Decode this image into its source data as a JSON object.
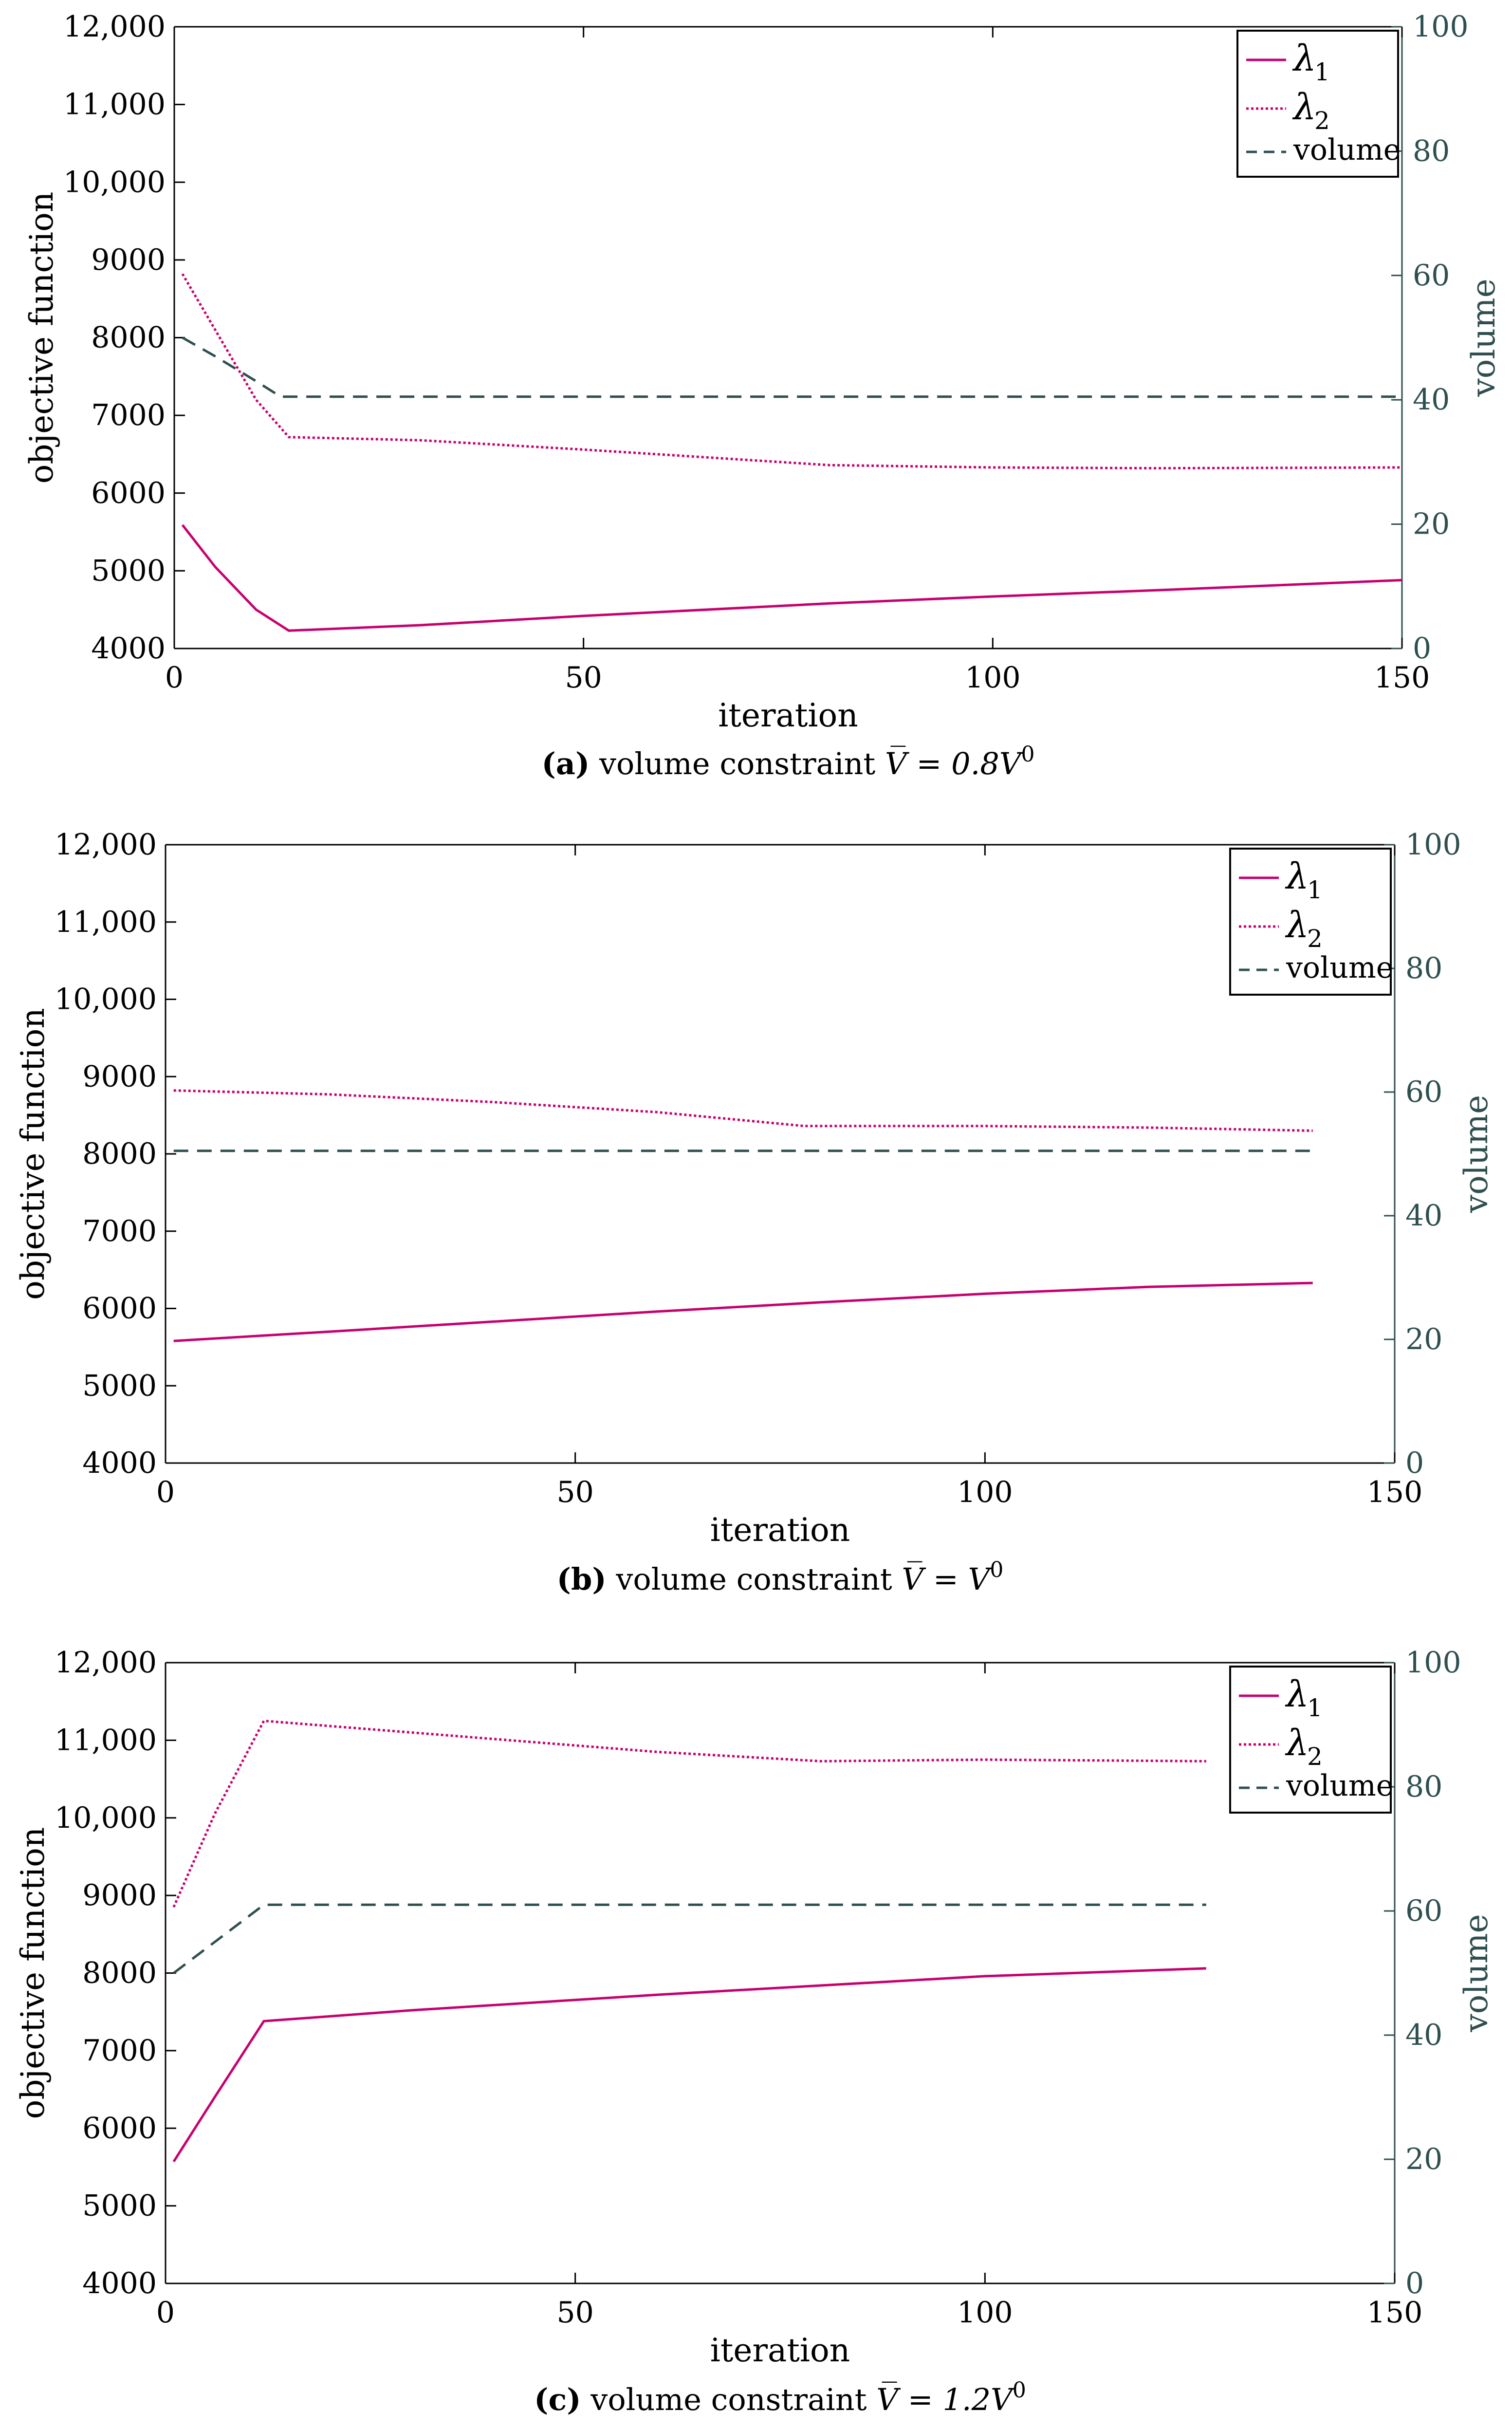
{
  "colors": {
    "lambda1": "#c8006e",
    "lambda2": "#c8006e",
    "volume": "#2f4f4f",
    "axis_left": "#000000",
    "axis_right": "#2f4f4f"
  },
  "chart_data": [
    {
      "type": "line",
      "xlabel": "iteration",
      "ylabel": "objective function",
      "y2label": "volume",
      "xlim": [
        0,
        150
      ],
      "ylim": [
        4000,
        12000
      ],
      "y2lim": [
        0,
        100
      ],
      "xticks": [
        0,
        50,
        100,
        150
      ],
      "yticks": [
        4000,
        5000,
        6000,
        7000,
        8000,
        9000,
        10000,
        11000,
        12000
      ],
      "yticklabels": [
        "4000",
        "5000",
        "6000",
        "7000",
        "8000",
        "9000",
        "10,000",
        "11,000",
        "12,000"
      ],
      "y2ticks": [
        0,
        20,
        40,
        60,
        80,
        100
      ],
      "legend": {
        "position": "top-right",
        "lambda1": "λ",
        "lambda1_sub": "1",
        "lambda2": "λ",
        "lambda2_sub": "2",
        "volume": "volume"
      },
      "caption": {
        "label": "(a)",
        "text": "volume constraint",
        "math": "V̅ = 0.8V",
        "sup": "0"
      },
      "series": [
        {
          "name": "λ1",
          "axis": "left",
          "style": "solid",
          "x": [
            1,
            5,
            10,
            14,
            30,
            50,
            80,
            100,
            120,
            150
          ],
          "y": [
            5590,
            5050,
            4500,
            4230,
            4300,
            4420,
            4580,
            4670,
            4750,
            4880
          ]
        },
        {
          "name": "λ2",
          "axis": "left",
          "style": "dotted",
          "x": [
            1,
            5,
            10,
            14,
            30,
            50,
            80,
            100,
            120,
            150
          ],
          "y": [
            8820,
            8100,
            7200,
            6720,
            6680,
            6560,
            6360,
            6330,
            6320,
            6330
          ]
        },
        {
          "name": "volume",
          "axis": "right",
          "style": "dashed",
          "x": [
            1,
            5,
            10,
            13,
            30,
            60,
            100,
            150
          ],
          "y": [
            50,
            47,
            43,
            40.5,
            40.5,
            40.5,
            40.5,
            40.5
          ]
        }
      ]
    },
    {
      "type": "line",
      "xlabel": "iteration",
      "ylabel": "objective function",
      "y2label": "volume",
      "xlim": [
        0,
        150
      ],
      "ylim": [
        4000,
        12000
      ],
      "y2lim": [
        0,
        100
      ],
      "xticks": [
        0,
        50,
        100,
        150
      ],
      "yticks": [
        4000,
        5000,
        6000,
        7000,
        8000,
        9000,
        10000,
        11000,
        12000
      ],
      "yticklabels": [
        "4000",
        "5000",
        "6000",
        "7000",
        "8000",
        "9000",
        "10,000",
        "11,000",
        "12,000"
      ],
      "y2ticks": [
        0,
        20,
        40,
        60,
        80,
        100
      ],
      "legend": {
        "position": "top-right",
        "lambda1": "λ",
        "lambda1_sub": "1",
        "lambda2": "λ",
        "lambda2_sub": "2",
        "volume": "volume"
      },
      "caption": {
        "label": "(b)",
        "text": "volume constraint",
        "math": "V̅ = V",
        "sup": "0"
      },
      "series": [
        {
          "name": "λ1",
          "axis": "left",
          "style": "solid",
          "x": [
            1,
            20,
            40,
            60,
            80,
            100,
            120,
            140
          ],
          "y": [
            5580,
            5700,
            5830,
            5960,
            6080,
            6190,
            6280,
            6330
          ]
        },
        {
          "name": "λ2",
          "axis": "left",
          "style": "dotted",
          "x": [
            1,
            20,
            40,
            60,
            78,
            100,
            120,
            140
          ],
          "y": [
            8820,
            8770,
            8670,
            8540,
            8360,
            8360,
            8340,
            8300
          ]
        },
        {
          "name": "volume",
          "axis": "right",
          "style": "dashed",
          "x": [
            1,
            140
          ],
          "y": [
            50.5,
            50.5
          ]
        }
      ]
    },
    {
      "type": "line",
      "xlabel": "iteration",
      "ylabel": "objective function",
      "y2label": "volume",
      "xlim": [
        0,
        150
      ],
      "ylim": [
        4000,
        12000
      ],
      "y2lim": [
        0,
        100
      ],
      "xticks": [
        0,
        50,
        100,
        150
      ],
      "yticks": [
        4000,
        5000,
        6000,
        7000,
        8000,
        9000,
        10000,
        11000,
        12000
      ],
      "yticklabels": [
        "4000",
        "5000",
        "6000",
        "7000",
        "8000",
        "9000",
        "10,000",
        "11,000",
        "12,000"
      ],
      "y2ticks": [
        0,
        20,
        40,
        60,
        80,
        100
      ],
      "legend": {
        "position": "top-right",
        "lambda1": "λ",
        "lambda1_sub": "1",
        "lambda2": "λ",
        "lambda2_sub": "2",
        "volume": "volume"
      },
      "caption": {
        "label": "(c)",
        "text": "volume constraint",
        "math": "V̅ = 1.2V",
        "sup": "0"
      },
      "series": [
        {
          "name": "λ1",
          "axis": "left",
          "style": "solid",
          "x": [
            1,
            6,
            12,
            30,
            60,
            80,
            100,
            127
          ],
          "y": [
            5570,
            6400,
            7380,
            7520,
            7720,
            7840,
            7960,
            8060
          ]
        },
        {
          "name": "λ2",
          "axis": "left",
          "style": "dotted",
          "x": [
            1,
            6,
            12,
            30,
            60,
            80,
            100,
            127
          ],
          "y": [
            8850,
            10050,
            11250,
            11100,
            10850,
            10730,
            10750,
            10730
          ]
        },
        {
          "name": "volume",
          "axis": "right",
          "style": "dashed",
          "x": [
            1,
            12,
            40,
            80,
            127
          ],
          "y": [
            50,
            61,
            61,
            61,
            61
          ]
        }
      ]
    }
  ]
}
